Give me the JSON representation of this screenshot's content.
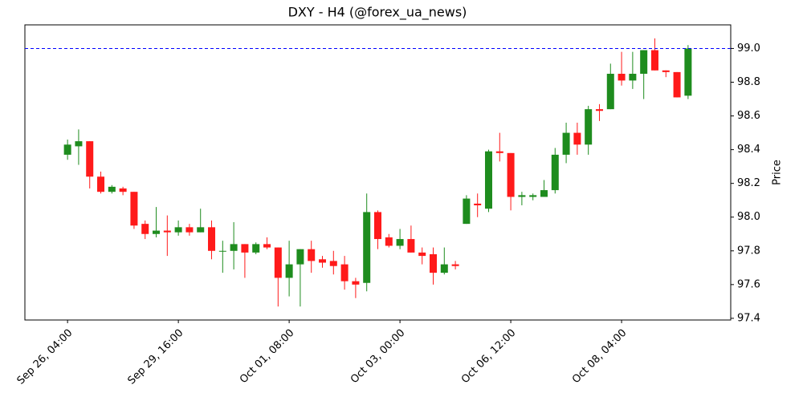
{
  "chart_data": {
    "type": "candlestick",
    "title": "DXY - H4 (@forex_ua_news)",
    "y_label": "Price",
    "categories": [
      "Sep 26, 04:00",
      null,
      null,
      null,
      null,
      null,
      null,
      null,
      null,
      null,
      "Sep 29, 16:00",
      null,
      null,
      null,
      null,
      null,
      null,
      null,
      null,
      null,
      "Oct 01, 08:00",
      null,
      null,
      null,
      null,
      null,
      null,
      null,
      null,
      null,
      "Oct 03, 00:00",
      null,
      null,
      null,
      null,
      null,
      null,
      null,
      null,
      null,
      "Oct 06, 12:00",
      null,
      null,
      null,
      null,
      null,
      null,
      null,
      null,
      null,
      "Oct 08, 04:00",
      null,
      null,
      null,
      null,
      null,
      null
    ],
    "open": [
      98.37,
      98.42,
      98.45,
      98.24,
      98.15,
      98.17,
      98.15,
      97.96,
      97.9,
      97.92,
      97.91,
      97.94,
      97.91,
      97.94,
      97.8,
      97.8,
      97.84,
      97.79,
      97.84,
      97.82,
      97.64,
      97.72,
      97.81,
      97.75,
      97.74,
      97.72,
      97.62,
      97.61,
      98.03,
      97.88,
      97.83,
      97.87,
      97.79,
      97.78,
      97.67,
      97.72,
      97.96,
      98.08,
      98.05,
      98.39,
      98.38,
      98.12,
      98.12,
      98.12,
      98.16,
      98.37,
      98.5,
      98.43,
      98.64,
      98.64,
      98.85,
      98.81,
      98.85,
      98.99,
      98.87,
      98.86,
      98.72
    ],
    "high": [
      98.46,
      98.52,
      98.45,
      98.27,
      98.19,
      98.18,
      98.15,
      97.98,
      98.06,
      98.01,
      97.98,
      97.96,
      98.05,
      97.98,
      97.86,
      97.97,
      97.84,
      97.85,
      97.88,
      97.82,
      97.86,
      97.81,
      97.86,
      97.77,
      97.8,
      97.77,
      97.64,
      98.14,
      98.04,
      97.9,
      97.93,
      97.95,
      97.82,
      97.82,
      97.82,
      97.74,
      98.13,
      98.14,
      98.4,
      98.5,
      98.38,
      98.15,
      98.14,
      98.22,
      98.41,
      98.56,
      98.56,
      98.66,
      98.67,
      98.91,
      98.98,
      98.98,
      98.99,
      99.06,
      98.87,
      98.86,
      99.02
    ],
    "low": [
      98.34,
      98.31,
      98.17,
      98.14,
      98.14,
      98.13,
      97.93,
      97.87,
      97.88,
      97.77,
      97.89,
      97.89,
      97.91,
      97.75,
      97.67,
      97.69,
      97.64,
      97.78,
      97.81,
      97.47,
      97.53,
      97.47,
      97.67,
      97.7,
      97.66,
      97.57,
      97.52,
      97.56,
      97.81,
      97.82,
      97.81,
      97.79,
      97.72,
      97.6,
      97.66,
      97.69,
      97.96,
      98.0,
      98.03,
      98.33,
      98.04,
      98.07,
      98.1,
      98.12,
      98.14,
      98.32,
      98.37,
      98.37,
      98.57,
      98.64,
      98.78,
      98.76,
      98.7,
      98.87,
      98.83,
      98.71,
      98.7
    ],
    "close": [
      98.43,
      98.45,
      98.24,
      98.15,
      98.18,
      98.15,
      97.95,
      97.9,
      97.92,
      97.91,
      97.94,
      97.91,
      97.94,
      97.8,
      97.8,
      97.84,
      97.79,
      97.84,
      97.82,
      97.64,
      97.72,
      97.81,
      97.74,
      97.73,
      97.71,
      97.62,
      97.6,
      98.03,
      97.87,
      97.83,
      97.87,
      97.79,
      97.77,
      97.67,
      97.72,
      97.71,
      98.11,
      98.07,
      98.39,
      98.38,
      98.12,
      98.13,
      98.13,
      98.16,
      98.37,
      98.5,
      98.43,
      98.64,
      98.63,
      98.85,
      98.81,
      98.85,
      98.99,
      98.87,
      98.86,
      98.71,
      99.0
    ],
    "up_color": "#1e8c1e",
    "down_color": "#ff1a1a",
    "hline": {
      "value": 99.0,
      "color": "#0000ff"
    },
    "ylim": [
      97.39,
      99.14
    ],
    "yticks": [
      97.4,
      97.6,
      97.8,
      {
        "value": 98.0,
        "label": "98.0"
      },
      98.2,
      98.4,
      98.6,
      98.8,
      {
        "value": 99.0,
        "label": "99.0"
      }
    ]
  }
}
